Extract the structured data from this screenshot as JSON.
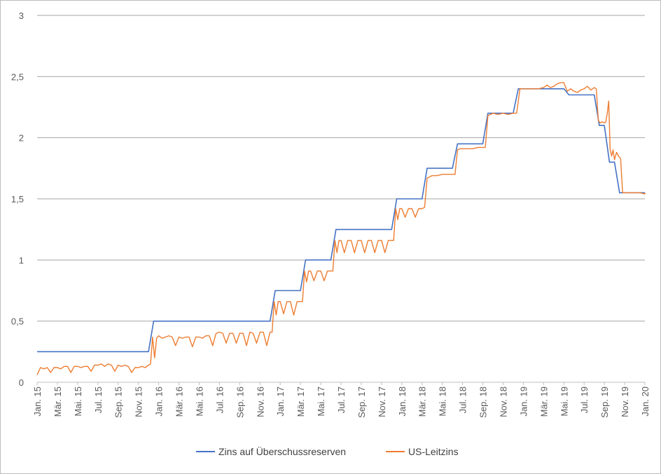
{
  "chart_data": {
    "type": "line",
    "title": "",
    "xlabel": "",
    "ylabel": "",
    "ylim": [
      0,
      3
    ],
    "y_ticks": [
      "0",
      "0,5",
      "1",
      "1,5",
      "2",
      "2,5",
      "3"
    ],
    "y_tick_values": [
      0,
      0.5,
      1,
      1.5,
      2,
      2.5,
      3
    ],
    "x_tick_labels": [
      "Jan. 15",
      "Mär. 15",
      "Mai. 15",
      "Jul. 15",
      "Sep. 15",
      "Nov. 15",
      "Jan. 16",
      "Mär. 16",
      "Mai. 16",
      "Jul. 16",
      "Sep. 16",
      "Nov. 16",
      "Jan. 17",
      "Mär. 17",
      "Mai. 17",
      "Jul. 17",
      "Sep. 17",
      "Nov. 17",
      "Jan. 18",
      "Mär. 18",
      "Mai. 18",
      "Jul. 18",
      "Sep. 18",
      "Nov. 18",
      "Jan. 19",
      "Mär. 19",
      "Mai. 19",
      "Jul. 19",
      "Sep. 19",
      "Nov. 19",
      "Jan. 20"
    ],
    "x_range_months": [
      "2015-01",
      "2020-01"
    ],
    "grid": "horizontal",
    "legend_position": "bottom",
    "series": [
      {
        "name": "Zins auf Überschussreserven",
        "color": "#4472C4",
        "points": [
          [
            "2015-01",
            0.25
          ],
          [
            "2015-12",
            0.25
          ],
          [
            "2015-12",
            0.5
          ],
          [
            "2016-12",
            0.5
          ],
          [
            "2016-12",
            0.75
          ],
          [
            "2017-03",
            0.75
          ],
          [
            "2017-03",
            1.0
          ],
          [
            "2017-06",
            1.0
          ],
          [
            "2017-06",
            1.25
          ],
          [
            "2017-12",
            1.25
          ],
          [
            "2017-12",
            1.5
          ],
          [
            "2018-03",
            1.5
          ],
          [
            "2018-03",
            1.75
          ],
          [
            "2018-06",
            1.75
          ],
          [
            "2018-06",
            1.95
          ],
          [
            "2018-09",
            1.95
          ],
          [
            "2018-09",
            2.2
          ],
          [
            "2018-12",
            2.2
          ],
          [
            "2018-12",
            2.4
          ],
          [
            "2019-05",
            2.4
          ],
          [
            "2019-05",
            2.35
          ],
          [
            "2019-08",
            2.35
          ],
          [
            "2019-08",
            2.1
          ],
          [
            "2019-09",
            2.1
          ],
          [
            "2019-09",
            1.8
          ],
          [
            "2019-10",
            1.8
          ],
          [
            "2019-10",
            1.55
          ],
          [
            "2020-01",
            1.55
          ]
        ]
      },
      {
        "name": "US-Leitzins",
        "color": "#ED7D31",
        "points": [
          [
            "2015-01",
            0.06
          ],
          [
            "2015-01",
            0.12
          ],
          [
            "2015-01",
            0.11
          ],
          [
            "2015-02",
            0.12
          ],
          [
            "2015-02",
            0.08
          ],
          [
            "2015-02",
            0.12
          ],
          [
            "2015-03",
            0.12
          ],
          [
            "2015-03",
            0.11
          ],
          [
            "2015-03",
            0.13
          ],
          [
            "2015-04",
            0.13
          ],
          [
            "2015-04",
            0.08
          ],
          [
            "2015-04",
            0.13
          ],
          [
            "2015-05",
            0.13
          ],
          [
            "2015-05",
            0.12
          ],
          [
            "2015-05",
            0.13
          ],
          [
            "2015-06",
            0.13
          ],
          [
            "2015-06",
            0.09
          ],
          [
            "2015-06",
            0.14
          ],
          [
            "2015-07",
            0.14
          ],
          [
            "2015-07",
            0.15
          ],
          [
            "2015-07",
            0.13
          ],
          [
            "2015-08",
            0.15
          ],
          [
            "2015-08",
            0.14
          ],
          [
            "2015-08",
            0.09
          ],
          [
            "2015-09",
            0.14
          ],
          [
            "2015-09",
            0.13
          ],
          [
            "2015-09",
            0.14
          ],
          [
            "2015-10",
            0.13
          ],
          [
            "2015-10",
            0.08
          ],
          [
            "2015-10",
            0.12
          ],
          [
            "2015-11",
            0.12
          ],
          [
            "2015-11",
            0.13
          ],
          [
            "2015-11",
            0.12
          ],
          [
            "2015-12",
            0.14
          ],
          [
            "2015-12",
            0.15
          ],
          [
            "2015-12",
            0.37
          ],
          [
            "2015-12",
            0.2
          ],
          [
            "2015-12",
            0.36
          ],
          [
            "2016-01",
            0.38
          ],
          [
            "2016-01",
            0.36
          ],
          [
            "2016-01",
            0.37
          ],
          [
            "2016-02",
            0.38
          ],
          [
            "2016-02",
            0.37
          ],
          [
            "2016-02",
            0.3
          ],
          [
            "2016-03",
            0.37
          ],
          [
            "2016-03",
            0.36
          ],
          [
            "2016-03",
            0.37
          ],
          [
            "2016-04",
            0.37
          ],
          [
            "2016-04",
            0.29
          ],
          [
            "2016-04",
            0.37
          ],
          [
            "2016-05",
            0.37
          ],
          [
            "2016-05",
            0.36
          ],
          [
            "2016-05",
            0.38
          ],
          [
            "2016-06",
            0.38
          ],
          [
            "2016-06",
            0.3
          ],
          [
            "2016-06",
            0.4
          ],
          [
            "2016-07",
            0.41
          ],
          [
            "2016-07",
            0.4
          ],
          [
            "2016-07",
            0.32
          ],
          [
            "2016-08",
            0.4
          ],
          [
            "2016-08",
            0.4
          ],
          [
            "2016-08",
            0.32
          ],
          [
            "2016-09",
            0.4
          ],
          [
            "2016-09",
            0.4
          ],
          [
            "2016-09",
            0.3
          ],
          [
            "2016-10",
            0.41
          ],
          [
            "2016-10",
            0.4
          ],
          [
            "2016-10",
            0.32
          ],
          [
            "2016-11",
            0.41
          ],
          [
            "2016-11",
            0.41
          ],
          [
            "2016-11",
            0.3
          ],
          [
            "2016-12",
            0.41
          ],
          [
            "2016-12",
            0.41
          ],
          [
            "2016-12",
            0.66
          ],
          [
            "2016-12",
            0.55
          ],
          [
            "2016-12",
            0.66
          ],
          [
            "2017-01",
            0.66
          ],
          [
            "2017-01",
            0.56
          ],
          [
            "2017-01",
            0.66
          ],
          [
            "2017-02",
            0.66
          ],
          [
            "2017-02",
            0.55
          ],
          [
            "2017-02",
            0.66
          ],
          [
            "2017-03",
            0.66
          ],
          [
            "2017-03",
            0.66
          ],
          [
            "2017-03",
            0.91
          ],
          [
            "2017-03",
            0.82
          ],
          [
            "2017-03",
            0.91
          ],
          [
            "2017-04",
            0.91
          ],
          [
            "2017-04",
            0.83
          ],
          [
            "2017-04",
            0.91
          ],
          [
            "2017-05",
            0.91
          ],
          [
            "2017-05",
            0.83
          ],
          [
            "2017-05",
            0.91
          ],
          [
            "2017-06",
            0.91
          ],
          [
            "2017-06",
            0.91
          ],
          [
            "2017-06",
            1.16
          ],
          [
            "2017-06",
            1.06
          ],
          [
            "2017-06",
            1.16
          ],
          [
            "2017-07",
            1.16
          ],
          [
            "2017-07",
            1.06
          ],
          [
            "2017-07",
            1.16
          ],
          [
            "2017-08",
            1.16
          ],
          [
            "2017-08",
            1.06
          ],
          [
            "2017-08",
            1.16
          ],
          [
            "2017-09",
            1.16
          ],
          [
            "2017-09",
            1.06
          ],
          [
            "2017-09",
            1.16
          ],
          [
            "2017-10",
            1.16
          ],
          [
            "2017-10",
            1.06
          ],
          [
            "2017-10",
            1.16
          ],
          [
            "2017-11",
            1.16
          ],
          [
            "2017-11",
            1.06
          ],
          [
            "2017-11",
            1.16
          ],
          [
            "2017-12",
            1.16
          ],
          [
            "2017-12",
            1.16
          ],
          [
            "2017-12",
            1.42
          ],
          [
            "2017-12",
            1.33
          ],
          [
            "2017-12",
            1.42
          ],
          [
            "2018-01",
            1.42
          ],
          [
            "2018-01",
            1.35
          ],
          [
            "2018-01",
            1.42
          ],
          [
            "2018-02",
            1.42
          ],
          [
            "2018-02",
            1.35
          ],
          [
            "2018-02",
            1.42
          ],
          [
            "2018-03",
            1.42
          ],
          [
            "2018-03",
            1.43
          ],
          [
            "2018-03",
            1.67
          ],
          [
            "2018-03",
            1.68
          ],
          [
            "2018-04",
            1.69
          ],
          [
            "2018-04",
            1.69
          ],
          [
            "2018-05",
            1.7
          ],
          [
            "2018-05",
            1.7
          ],
          [
            "2018-06",
            1.7
          ],
          [
            "2018-06",
            1.7
          ],
          [
            "2018-06",
            1.9
          ],
          [
            "2018-06",
            1.91
          ],
          [
            "2018-07",
            1.91
          ],
          [
            "2018-07",
            1.91
          ],
          [
            "2018-08",
            1.91
          ],
          [
            "2018-08",
            1.92
          ],
          [
            "2018-09",
            1.92
          ],
          [
            "2018-09",
            1.92
          ],
          [
            "2018-09",
            2.18
          ],
          [
            "2018-09",
            2.19
          ],
          [
            "2018-10",
            2.2
          ],
          [
            "2018-10",
            2.19
          ],
          [
            "2018-11",
            2.2
          ],
          [
            "2018-11",
            2.19
          ],
          [
            "2018-12",
            2.2
          ],
          [
            "2018-12",
            2.2
          ],
          [
            "2018-12",
            2.4
          ],
          [
            "2019-01",
            2.4
          ],
          [
            "2019-01",
            2.4
          ],
          [
            "2019-02",
            2.4
          ],
          [
            "2019-02",
            2.4
          ],
          [
            "2019-03",
            2.41
          ],
          [
            "2019-03",
            2.43
          ],
          [
            "2019-03",
            2.41
          ],
          [
            "2019-04",
            2.42
          ],
          [
            "2019-04",
            2.44
          ],
          [
            "2019-04",
            2.45
          ],
          [
            "2019-05",
            2.45
          ],
          [
            "2019-05",
            2.38
          ],
          [
            "2019-05",
            2.4
          ],
          [
            "2019-06",
            2.38
          ],
          [
            "2019-06",
            2.37
          ],
          [
            "2019-06",
            2.39
          ],
          [
            "2019-07",
            2.4
          ],
          [
            "2019-07",
            2.42
          ],
          [
            "2019-07",
            2.39
          ],
          [
            "2019-08",
            2.41
          ],
          [
            "2019-08",
            2.4
          ],
          [
            "2019-08",
            2.14
          ],
          [
            "2019-08",
            2.12
          ],
          [
            "2019-08",
            2.13
          ],
          [
            "2019-09",
            2.12
          ],
          [
            "2019-09",
            2.13
          ],
          [
            "2019-09",
            2.2
          ],
          [
            "2019-09",
            2.3
          ],
          [
            "2019-09",
            1.9
          ],
          [
            "2019-09",
            1.85
          ],
          [
            "2019-09",
            1.9
          ],
          [
            "2019-10",
            1.82
          ],
          [
            "2019-10",
            1.88
          ],
          [
            "2019-10",
            1.85
          ],
          [
            "2019-10",
            1.83
          ],
          [
            "2019-10",
            1.55
          ],
          [
            "2019-11",
            1.55
          ],
          [
            "2019-11",
            1.55
          ],
          [
            "2019-12",
            1.55
          ],
          [
            "2019-12",
            1.55
          ],
          [
            "2020-01",
            1.54
          ],
          [
            "2020-01",
            1.55
          ]
        ]
      }
    ]
  }
}
